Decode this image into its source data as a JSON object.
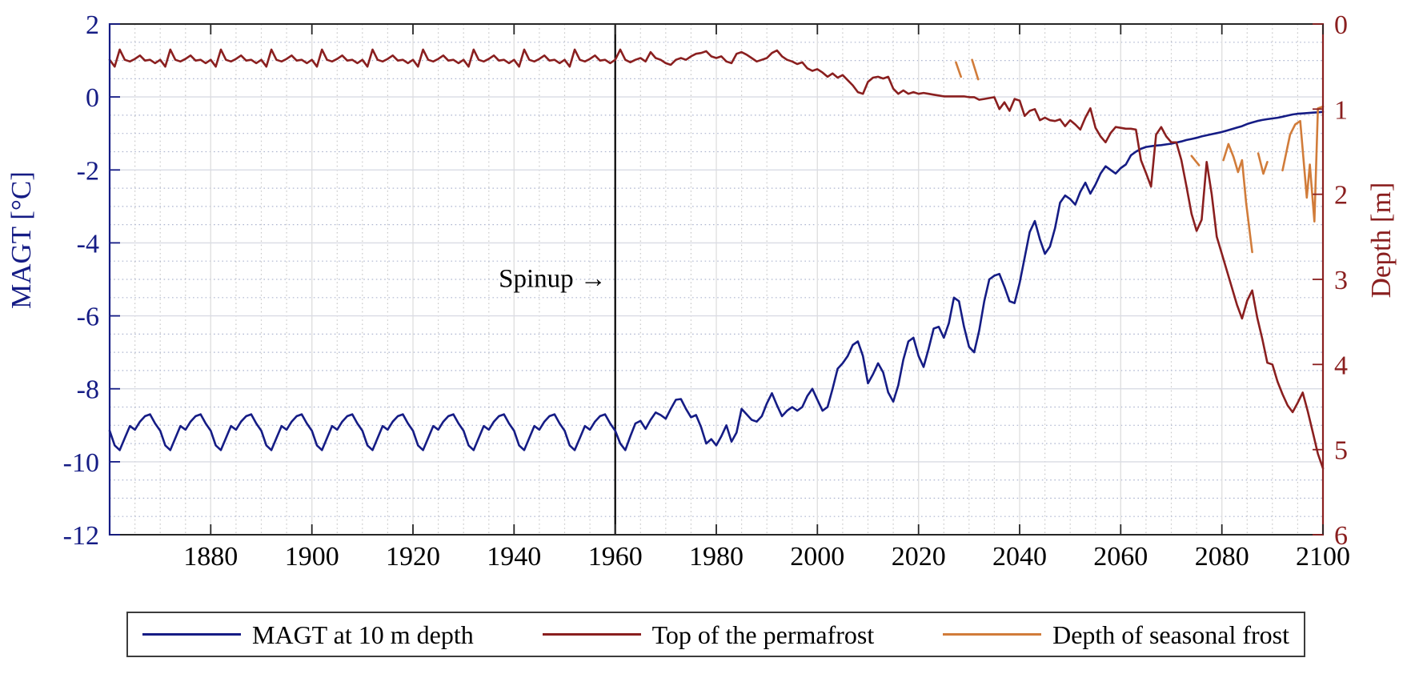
{
  "figure": {
    "background": "#ffffff",
    "spine_color": "#262626"
  },
  "axes": {
    "x": {
      "range": [
        1860,
        2100
      ],
      "ticks": [
        1880,
        1900,
        1920,
        1940,
        1960,
        1980,
        2000,
        2020,
        2040,
        2060,
        2080,
        2100
      ],
      "tick_labels": [
        "1880",
        "1900",
        "1920",
        "1940",
        "1960",
        "1980",
        "2000",
        "2020",
        "2040",
        "2060",
        "2080",
        "2100"
      ],
      "minor_step_years": 5,
      "label_color": "#000000"
    },
    "y_left": {
      "title": "MAGT [°C]",
      "range": [
        -12,
        2
      ],
      "ticks": [
        2,
        0,
        -2,
        -4,
        -6,
        -8,
        -10,
        -12
      ],
      "tick_labels": [
        "2",
        "0",
        "-2",
        "-4",
        "-6",
        "-8",
        "-10",
        "-12"
      ],
      "minor_step": 0.5,
      "color": "#151c85"
    },
    "y_right": {
      "title": "Depth [m]",
      "range": [
        0,
        6
      ],
      "inverted": true,
      "ticks": [
        0,
        1,
        2,
        3,
        4,
        5,
        6
      ],
      "tick_labels": [
        "0",
        "1",
        "2",
        "3",
        "4",
        "5",
        "6"
      ],
      "color": "#8a1f1f"
    }
  },
  "legend": {
    "border_color": "#3c3c3c"
  },
  "chart_data": {
    "type": "line",
    "title": "",
    "xlabel": "",
    "x_range": [
      1860,
      2100
    ],
    "left_axis": {
      "label": "MAGT [°C]",
      "range": [
        -12,
        2
      ]
    },
    "right_axis": {
      "label": "Depth [m]",
      "range": [
        0,
        6
      ],
      "inverted": true
    },
    "grid": {
      "major_h": "#d9dbe4",
      "major_v": "#e0e0e0",
      "minor_h": "#aeb6d0",
      "minor_v": "#c9c9c9"
    },
    "annotations": [
      {
        "type": "vline",
        "x": 1960,
        "color": "#000000"
      },
      {
        "type": "text",
        "text": "Spinup →",
        "x": 1958.3,
        "y_left": -4.95,
        "align": "right",
        "color": "#000000"
      }
    ],
    "series": [
      {
        "id": "magt-10m",
        "name": "MAGT at 10 m depth",
        "axis": "left",
        "unit": "°C",
        "color": "#151c85",
        "cycle_years": [
          1860,
          1959
        ],
        "cycle": [
          -9.15,
          -9.55,
          -9.68,
          -9.35,
          -9.02,
          -9.12,
          -8.9,
          -8.75,
          -8.7,
          -8.95
        ],
        "annual_start": 1960,
        "annual": [
          -9.15,
          -9.5,
          -9.68,
          -9.3,
          -8.95,
          -8.88,
          -9.1,
          -8.85,
          -8.65,
          -8.72,
          -8.82,
          -8.55,
          -8.3,
          -8.28,
          -8.55,
          -8.78,
          -8.72,
          -9.05,
          -9.5,
          -9.38,
          -9.55,
          -9.3,
          -9.0,
          -9.45,
          -9.2,
          -8.55,
          -8.7,
          -8.85,
          -8.9,
          -8.75,
          -8.4,
          -8.12,
          -8.45,
          -8.75,
          -8.6,
          -8.5,
          -8.6,
          -8.5,
          -8.2,
          -8.0,
          -8.3,
          -8.6,
          -8.5,
          -8.0,
          -7.45,
          -7.3,
          -7.1,
          -6.8,
          -6.7,
          -7.1,
          -7.85,
          -7.6,
          -7.3,
          -7.55,
          -8.1,
          -8.35,
          -7.9,
          -7.2,
          -6.7,
          -6.6,
          -7.1,
          -7.4,
          -6.9,
          -6.35,
          -6.3,
          -6.6,
          -6.2,
          -5.5,
          -5.6,
          -6.3,
          -6.85,
          -7.0,
          -6.4,
          -5.6,
          -5.0,
          -4.9,
          -4.85,
          -5.2,
          -5.6,
          -5.65,
          -5.1,
          -4.4,
          -3.7,
          -3.4,
          -3.9,
          -4.3,
          -4.1,
          -3.6,
          -2.9,
          -2.7,
          -2.8,
          -2.95,
          -2.6,
          -2.35,
          -2.65,
          -2.4,
          -2.1,
          -1.9,
          -2.0,
          -2.1,
          -1.95,
          -1.85,
          -1.6,
          -1.5,
          -1.42,
          -1.37,
          -1.35,
          -1.33,
          -1.32,
          -1.3,
          -1.28,
          -1.25,
          -1.22,
          -1.18,
          -1.15,
          -1.12,
          -1.08,
          -1.05,
          -1.02,
          -0.99,
          -0.96,
          -0.92,
          -0.88,
          -0.84,
          -0.8,
          -0.74,
          -0.7,
          -0.66,
          -0.63,
          -0.61,
          -0.59,
          -0.57,
          -0.54,
          -0.51,
          -0.48,
          -0.46,
          -0.45,
          -0.44,
          -0.43,
          -0.42,
          -0.41
        ]
      },
      {
        "id": "permafrost-top",
        "name": "Top of the permafrost",
        "axis": "right",
        "unit": "m",
        "color": "#8a1f1f",
        "cycle_years": [
          1860,
          1959
        ],
        "cycle": [
          0.42,
          0.5,
          0.3,
          0.42,
          0.44,
          0.41,
          0.37,
          0.43,
          0.42,
          0.46
        ],
        "annual_start": 1960,
        "annual": [
          0.42,
          0.3,
          0.42,
          0.45,
          0.42,
          0.4,
          0.44,
          0.33,
          0.4,
          0.42,
          0.46,
          0.48,
          0.42,
          0.4,
          0.42,
          0.38,
          0.35,
          0.34,
          0.32,
          0.38,
          0.4,
          0.38,
          0.44,
          0.46,
          0.35,
          0.33,
          0.36,
          0.4,
          0.44,
          0.42,
          0.4,
          0.34,
          0.31,
          0.38,
          0.42,
          0.44,
          0.47,
          0.45,
          0.52,
          0.55,
          0.53,
          0.57,
          0.62,
          0.58,
          0.63,
          0.6,
          0.66,
          0.72,
          0.8,
          0.82,
          0.68,
          0.63,
          0.62,
          0.64,
          0.62,
          0.76,
          0.82,
          0.78,
          0.82,
          0.8,
          0.82,
          0.81,
          0.82,
          0.83,
          0.84,
          0.85,
          0.85,
          0.85,
          0.85,
          0.85,
          0.86,
          0.86,
          0.89,
          0.88,
          0.87,
          0.86,
          1.0,
          0.92,
          1.02,
          0.88,
          0.9,
          1.08,
          1.02,
          1.0,
          1.13,
          1.1,
          1.13,
          1.14,
          1.12,
          1.2,
          1.13,
          1.18,
          1.24,
          1.1,
          0.99,
          1.22,
          1.32,
          1.39,
          1.28,
          1.21,
          1.22,
          1.23,
          1.23,
          1.24,
          1.6,
          1.75,
          1.91,
          1.3,
          1.21,
          1.32,
          1.39,
          1.39,
          1.6,
          1.91,
          2.23,
          2.43,
          2.3,
          1.62,
          2.0,
          2.5,
          2.7,
          2.9,
          3.1,
          3.3,
          3.46,
          3.25,
          3.13,
          3.45,
          3.7,
          3.98,
          4.0,
          4.2,
          4.35,
          4.48,
          4.56,
          4.45,
          4.33,
          4.55,
          4.8,
          5.05,
          5.22
        ]
      },
      {
        "id": "seasonal-frost",
        "name": "Depth of seasonal frost",
        "axis": "right",
        "unit": "m",
        "color": "#d17c3a",
        "segments": [
          [
            [
              2027.4,
              0.45
            ],
            [
              2028.4,
              0.62
            ]
          ],
          [
            [
              2030.6,
              0.42
            ],
            [
              2031.8,
              0.65
            ]
          ],
          [
            [
              2074.0,
              1.55
            ],
            [
              2075.5,
              1.66
            ]
          ],
          [
            [
              2080.3,
              1.6
            ],
            [
              2081.3,
              1.41
            ],
            [
              2082.3,
              1.56
            ],
            [
              2083.2,
              1.74
            ],
            [
              2084.0,
              1.6
            ],
            [
              2084.8,
              2.1
            ],
            [
              2086.0,
              2.68
            ]
          ],
          [
            [
              2087.2,
              1.52
            ],
            [
              2088.2,
              1.76
            ],
            [
              2089.0,
              1.62
            ]
          ],
          [
            [
              2092.0,
              1.72
            ],
            [
              2093.5,
              1.3
            ],
            [
              2094.5,
              1.18
            ],
            [
              2095.5,
              1.14
            ],
            [
              2096.8,
              2.04
            ],
            [
              2097.4,
              1.65
            ],
            [
              2098.3,
              2.32
            ],
            [
              2099.0,
              0.99
            ],
            [
              2100.0,
              0.97
            ]
          ]
        ]
      }
    ]
  }
}
